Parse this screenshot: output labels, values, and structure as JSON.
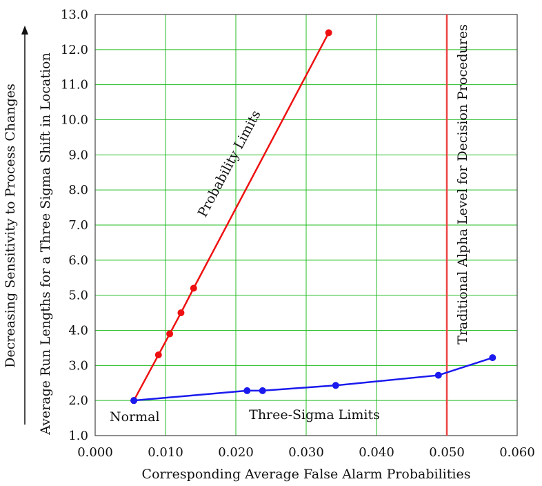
{
  "chart_data": {
    "type": "line",
    "xlabel": "Corresponding Average False Alarm Probabilities",
    "ylabel": "Average Run Lengths for a Three Sigma Shift in Location",
    "outer_ylabel": "Decreasing Sensitivity to Process Changes",
    "xlim": [
      0.0,
      0.06
    ],
    "ylim": [
      1.0,
      13.0
    ],
    "x_ticks": [
      0.0,
      0.01,
      0.02,
      0.03,
      0.04,
      0.05,
      0.06
    ],
    "x_tick_labels": [
      "0.000",
      "0.010",
      "0.020",
      "0.030",
      "0.040",
      "0.050",
      "0.060"
    ],
    "y_ticks": [
      1,
      2,
      3,
      4,
      5,
      6,
      7,
      8,
      9,
      10,
      11,
      12,
      13
    ],
    "y_tick_labels": [
      "1.0",
      "2.0",
      "3.0",
      "4.0",
      "5.0",
      "6.0",
      "7.0",
      "8.0",
      "9.0",
      "10.0",
      "11.0",
      "12.0",
      "13.0"
    ],
    "grid": true,
    "grid_color": "#22bb22",
    "series": [
      {
        "name": "Probability Limits",
        "color": "#ee1111",
        "x": [
          0.0055,
          0.009,
          0.0106,
          0.0122,
          0.014,
          0.0332
        ],
        "y": [
          2.0,
          3.3,
          3.9,
          4.5,
          5.2,
          12.48
        ]
      },
      {
        "name": "Three-Sigma Limits",
        "color": "#1a1aee",
        "x": [
          0.0055,
          0.0216,
          0.0238,
          0.0342,
          0.0488,
          0.0565
        ],
        "y": [
          2.0,
          2.28,
          2.28,
          2.43,
          2.72,
          3.22
        ]
      }
    ],
    "reference_line": {
      "x": 0.05,
      "color": "#ee4444",
      "label": "Traditional Alpha Level for Decision Procedures"
    },
    "annotations": {
      "normal": "Normal"
    }
  }
}
